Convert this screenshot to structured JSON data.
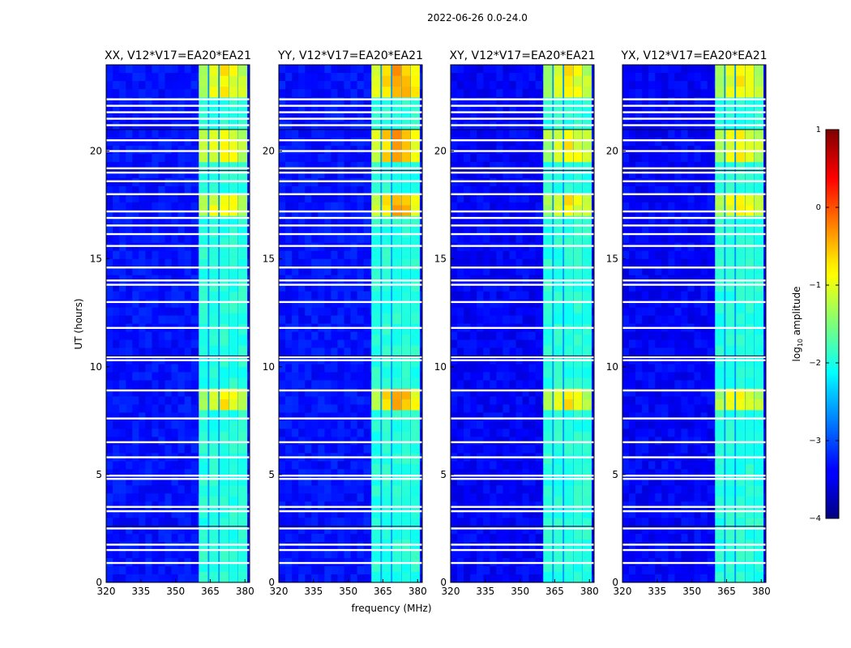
{
  "figure": {
    "suptitle": "2022-06-26 0.0-24.0",
    "xlabel": "frequency (MHz)",
    "ylabel": "UT (hours)"
  },
  "chart_data": {
    "type": "heatmap",
    "title": "2022-06-26 0.0-24.0",
    "xlabel": "frequency (MHz)",
    "ylabel": "UT (hours)",
    "xlim": [
      320,
      382
    ],
    "ylim": [
      0,
      24
    ],
    "xticks": [
      320,
      335,
      350,
      365,
      380
    ],
    "yticks": [
      0,
      5,
      10,
      15,
      20
    ],
    "panels": [
      {
        "title": "XX, V12*V17=EA20*EA21",
        "band_level": [
          -1.6,
          -1.3,
          -1.1,
          -1.3,
          -1.5
        ],
        "baseline_level": -3.3
      },
      {
        "title": "YY, V12*V17=EA20*EA21",
        "band_level": [
          -1.4,
          -1.0,
          -0.7,
          -0.9,
          -1.2
        ],
        "baseline_level": -3.3
      },
      {
        "title": "XY, V12*V17=EA20*EA21",
        "band_level": [
          -1.6,
          -1.3,
          -1.1,
          -1.3,
          -1.5
        ],
        "baseline_level": -3.4
      },
      {
        "title": "YX, V12*V17=EA20*EA21",
        "band_level": [
          -1.6,
          -1.3,
          -1.1,
          -1.3,
          -1.5
        ],
        "baseline_level": -3.4
      }
    ],
    "band_freqs_mhz": [
      362.0,
      366.5,
      371.0,
      375.0,
      379.0
    ],
    "band_edges_mhz": [
      360,
      381
    ],
    "flagged_rows_ut": [
      0.9,
      1.5,
      1.75,
      2.5,
      3.3,
      3.5,
      4.8,
      4.95,
      5.8,
      6.5,
      7.6,
      8.9,
      10.3,
      10.45,
      11.8,
      13.0,
      13.8,
      14.0,
      14.6,
      15.6,
      16.15,
      16.55,
      16.9,
      17.2,
      18.0,
      18.6,
      19.0,
      19.2,
      20.0,
      20.5,
      21.2,
      21.5,
      21.8,
      22.1,
      22.4
    ],
    "bright_intervals_ut": [
      [
        7.8,
        8.9
      ],
      [
        16.9,
        18.2
      ],
      [
        19.3,
        20.4
      ],
      [
        20.6,
        21.1
      ],
      [
        22.5,
        24.0
      ]
    ],
    "colorbar": {
      "label": "log10 amplitude",
      "label_main": "log",
      "label_sub": "10",
      "label_rest": " amplitude",
      "range": [
        -4,
        1
      ],
      "ticks": [
        1,
        0,
        -1,
        -2,
        -3,
        -4
      ],
      "tick_labels": [
        "1",
        "0",
        "−1",
        "−2",
        "−3",
        "−4"
      ],
      "colormap": "jet"
    }
  }
}
